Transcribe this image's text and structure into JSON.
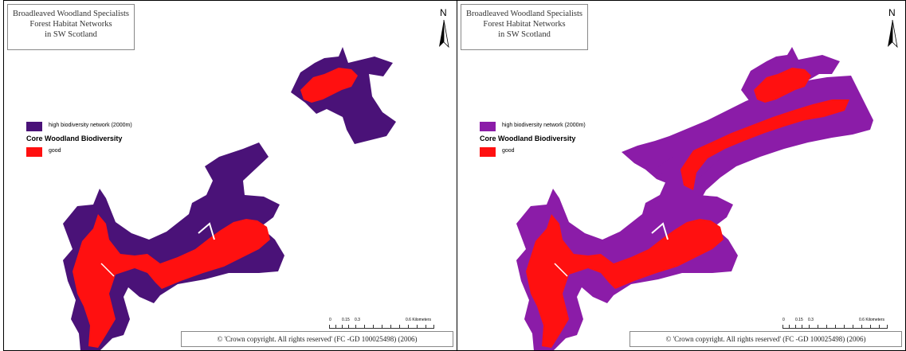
{
  "colors": {
    "network_left": "#4a1278",
    "network_right": "#8b1ca8",
    "core_good": "#ff1010",
    "background": "#ffffff"
  },
  "panels": [
    {
      "title_lines": [
        "Broadleaved Woodland Specialists",
        "Forest Habitat Networks",
        "in SW Scotland"
      ],
      "north_label": "N",
      "legend": {
        "network_label": "high biodiversity network (2000m)",
        "heading": "Core Woodland Biodiversity",
        "core_label": "good"
      },
      "scale": {
        "labels": [
          "0",
          "0.15",
          "0.3",
          "0.6 Kilometers"
        ]
      },
      "copyright": "© 'Crown copyright. All rights reserved' (FC -GD 100025498) (2006)"
    },
    {
      "title_lines": [
        "Broadleaved Woodland Specialists",
        "Forest Habitat Networks",
        "in SW Scotland"
      ],
      "north_label": "N",
      "legend": {
        "network_label": "high biodiversity network (2000m)",
        "heading": "Core Woodland Biodiversity",
        "core_label": "good"
      },
      "scale": {
        "labels": [
          "0",
          "0.15",
          "0.3",
          "0.6 Kilometers"
        ]
      },
      "copyright": "© 'Crown copyright. All rights reserved' (FC -GD 100025498) (2006)"
    }
  ]
}
